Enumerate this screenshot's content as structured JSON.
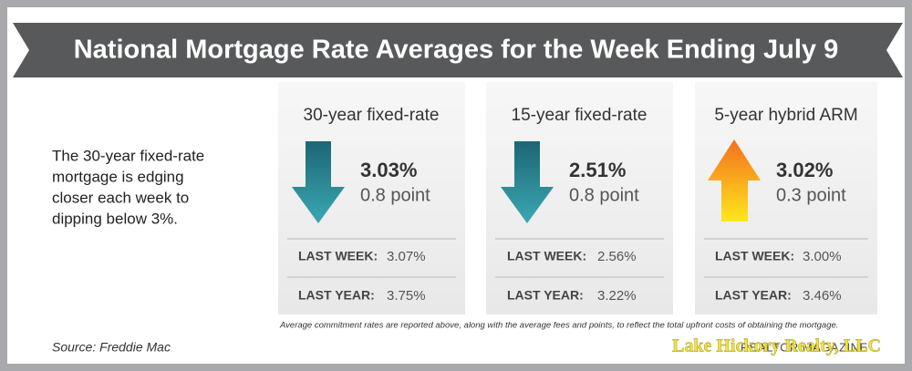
{
  "header": {
    "title": "National Mortgage Rate Averages for the Week Ending July 9"
  },
  "description": {
    "lines": [
      "The 30-year fixed-rate",
      "mortgage is edging",
      "closer each week to",
      "dipping below 3%."
    ]
  },
  "cards": [
    {
      "heading": "30-year fixed-rate",
      "rate": "3.03%",
      "change": "0.8 point",
      "last_week_label": "LAST WEEK:",
      "last_week": "3.07%",
      "last_year_label": "LAST YEAR:",
      "last_year": "3.75%"
    },
    {
      "heading": "15-year fixed-rate",
      "rate": "2.51%",
      "change": "0.8 point",
      "last_week_label": "LAST WEEK:",
      "last_week": "2.56%",
      "last_year_label": "LAST YEAR:",
      "last_year": "3.22%"
    },
    {
      "heading": "5-year hybrid ARM",
      "rate": "3.02%",
      "change": "0.3 point",
      "last_week_label": "LAST WEEK:",
      "last_week": "3.00%",
      "last_year_label": "LAST YEAR:",
      "last_year": "3.46%"
    }
  ],
  "footnote": "Average commitment rates are reported above, along with the average fees and points, to reflect the total upfront costs of obtaining the mortgage.",
  "source": "Source: Freddie Mac",
  "brand": "REALTOR MAGAZINE",
  "watermark": "Lake Hickory Realty, LLC"
}
